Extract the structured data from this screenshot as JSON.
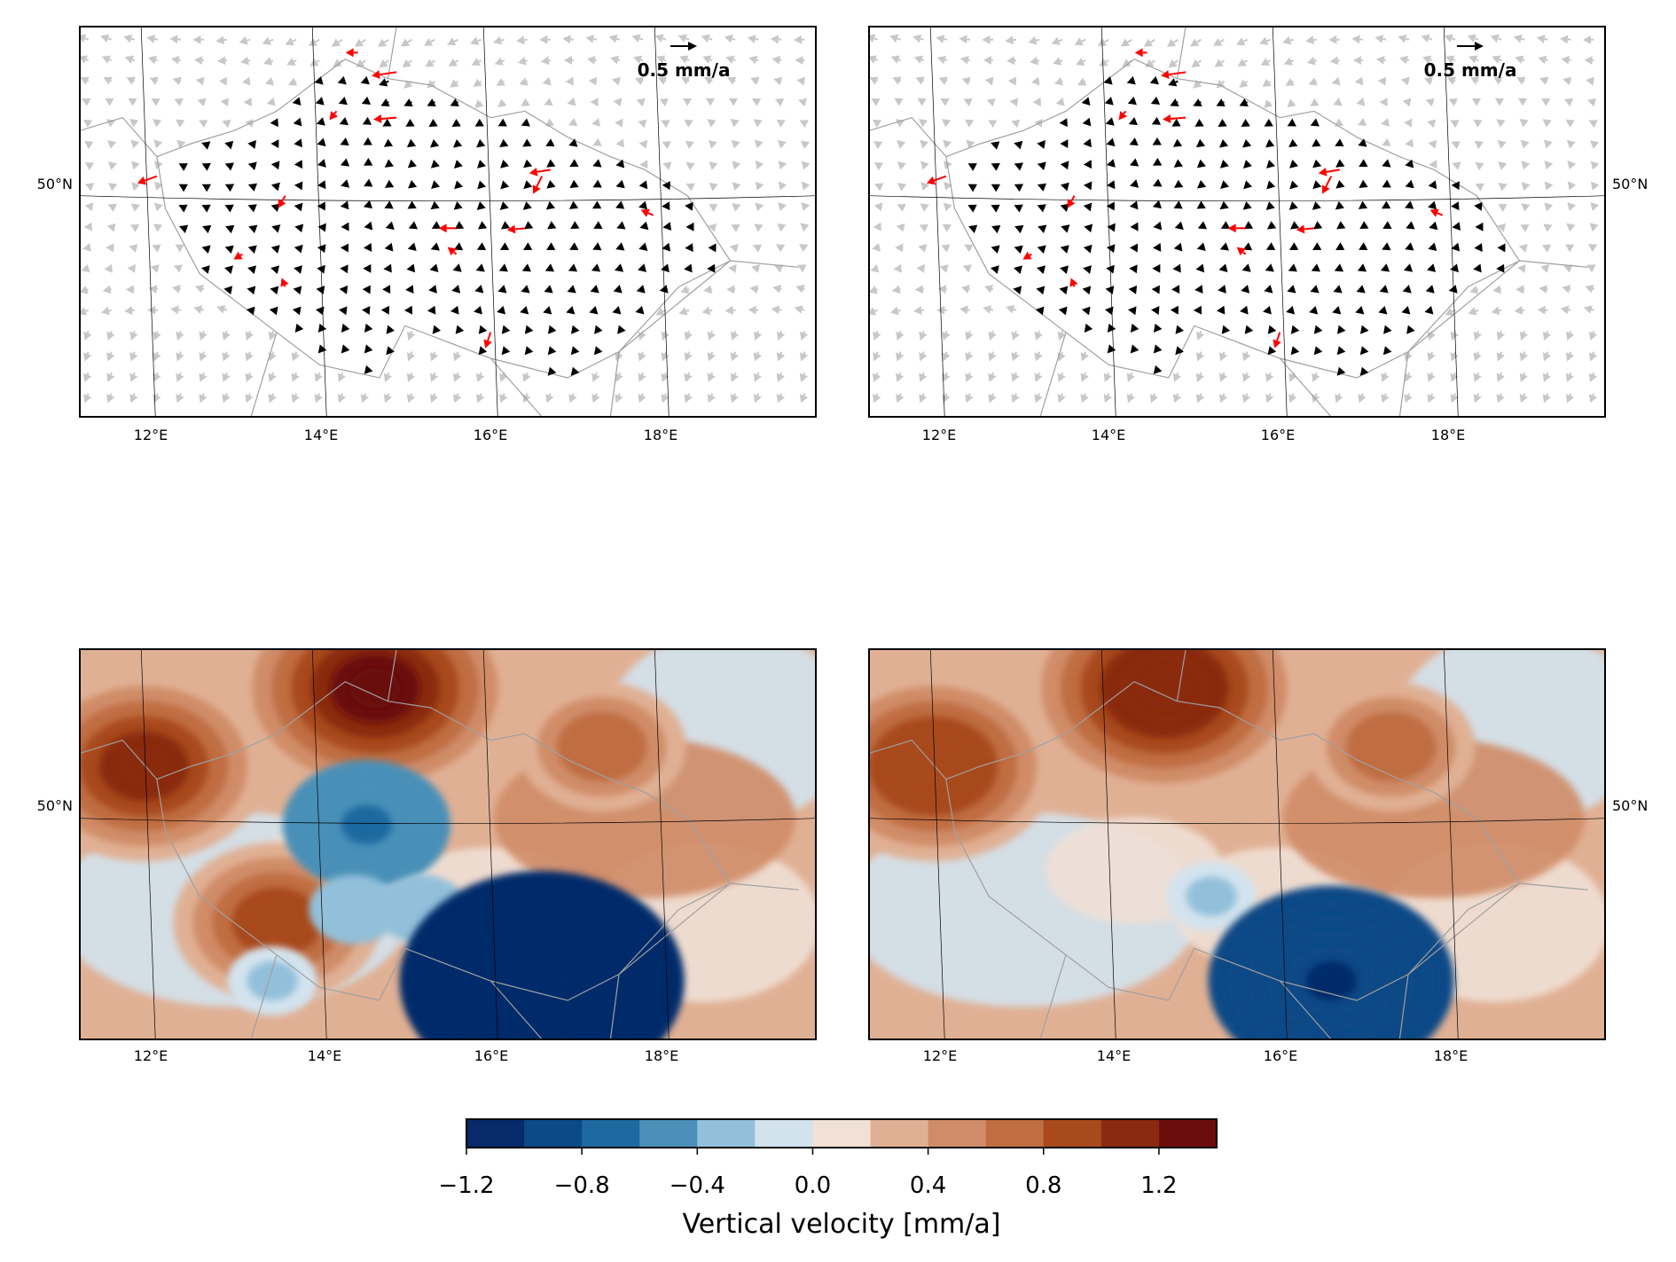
{
  "chart_data": {
    "panels": [
      {
        "type": "quiver-map",
        "title": "",
        "x_tick_labels": [
          "12°E",
          "14°E",
          "16°E",
          "18°E"
        ],
        "y_tick_labels": [
          "50°N"
        ],
        "xlim": [
          11.2,
          19.8
        ],
        "ylim": [
          48.3,
          51.3
        ],
        "scale_label": "0.5 mm/a",
        "scale_value": 0.5,
        "arrow_colors": {
          "gnss": "#000000",
          "residual": "#ff0000",
          "background": "#c8c8c8"
        }
      },
      {
        "type": "quiver-map",
        "title": "",
        "x_tick_labels": [
          "12°E",
          "14°E",
          "16°E",
          "18°E"
        ],
        "y_tick_labels": [
          "50°N"
        ],
        "xlim": [
          11.2,
          19.8
        ],
        "ylim": [
          48.3,
          51.3
        ],
        "scale_label": "0.5 mm/a",
        "scale_value": 0.5,
        "arrow_colors": {
          "gnss": "#000000",
          "residual": "#ff0000",
          "background": "#c8c8c8"
        }
      },
      {
        "type": "heatmap",
        "title": "",
        "x_tick_labels": [
          "12°E",
          "14°E",
          "16°E",
          "18°E"
        ],
        "y_tick_labels": [
          "50°N"
        ],
        "xlim": [
          11.2,
          19.8
        ],
        "ylim": [
          48.3,
          51.3
        ],
        "field": [
          {
            "lon": 11.95,
            "lat": 50.4,
            "value": 1.0
          },
          {
            "lon": 14.65,
            "lat": 51.0,
            "value": 1.2
          },
          {
            "lon": 17.3,
            "lat": 50.55,
            "value": 0.7
          },
          {
            "lon": 13.5,
            "lat": 49.2,
            "value": 0.8
          },
          {
            "lon": 14.55,
            "lat": 49.95,
            "value": -0.6
          },
          {
            "lon": 14.4,
            "lat": 49.3,
            "value": -0.3
          },
          {
            "lon": 15.2,
            "lat": 49.3,
            "value": -0.3
          },
          {
            "lon": 16.6,
            "lat": 48.75,
            "value": -1.1
          },
          {
            "lon": 13.45,
            "lat": 48.75,
            "value": -0.2
          }
        ]
      },
      {
        "type": "heatmap",
        "title": "",
        "x_tick_labels": [
          "12°E",
          "14°E",
          "16°E",
          "18°E"
        ],
        "y_tick_labels": [
          "50°N"
        ],
        "xlim": [
          11.2,
          19.8
        ],
        "ylim": [
          48.3,
          51.3
        ],
        "field": [
          {
            "lon": 11.95,
            "lat": 50.4,
            "value": 0.9
          },
          {
            "lon": 14.65,
            "lat": 51.0,
            "value": 1.1
          },
          {
            "lon": 17.3,
            "lat": 50.55,
            "value": 0.6
          },
          {
            "lon": 15.2,
            "lat": 49.4,
            "value": -0.2
          },
          {
            "lon": 16.6,
            "lat": 48.75,
            "value": -1.0
          }
        ]
      }
    ],
    "colorbar": {
      "label": "Vertical velocity [mm/a]",
      "tick_labels": [
        "−1.2",
        "−0.8",
        "−0.4",
        "0.0",
        "0.4",
        "0.8",
        "1.2"
      ],
      "range": [
        -1.2,
        1.4
      ],
      "step": 0.2,
      "colors": [
        "#062a6a",
        "#0b4a86",
        "#1d69a0",
        "#4a90b8",
        "#92c0da",
        "#d3e3ee",
        "#f0e0d6",
        "#e0b094",
        "#d08c68",
        "#c06d42",
        "#a84a1c",
        "#8a2a0e",
        "#6b0d0d"
      ]
    }
  }
}
